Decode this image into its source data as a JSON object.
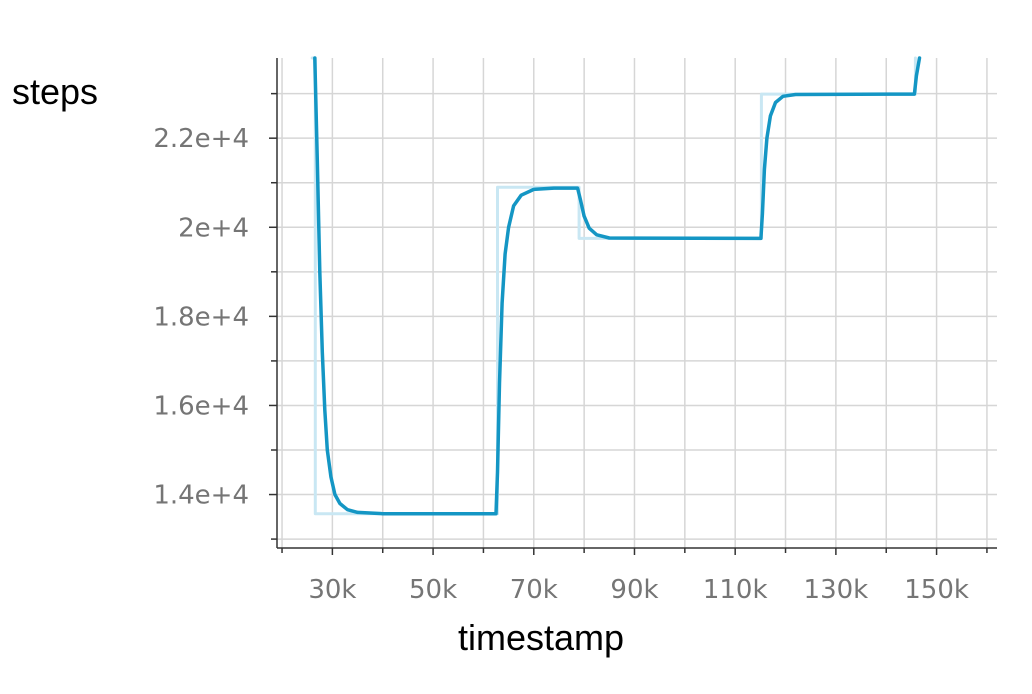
{
  "chart_data": {
    "type": "line",
    "title": "",
    "xlabel": "timestamp",
    "ylabel": "steps",
    "xlim": [
      19000,
      162000
    ],
    "ylim": [
      12800,
      23800
    ],
    "grid": true,
    "x_minor_ticks": [
      20000,
      30000,
      40000,
      50000,
      60000,
      70000,
      80000,
      90000,
      100000,
      110000,
      120000,
      130000,
      140000,
      150000,
      160000
    ],
    "y_minor_ticks": [
      13000,
      14000,
      15000,
      16000,
      17000,
      18000,
      19000,
      20000,
      21000,
      22000,
      23000
    ],
    "x_ticks": [
      {
        "value": 30000,
        "label": "30k"
      },
      {
        "value": 50000,
        "label": "50k"
      },
      {
        "value": 70000,
        "label": "70k"
      },
      {
        "value": 90000,
        "label": "90k"
      },
      {
        "value": 110000,
        "label": "110k"
      },
      {
        "value": 130000,
        "label": "130k"
      },
      {
        "value": 150000,
        "label": "150k"
      }
    ],
    "y_ticks": [
      {
        "value": 14000,
        "label": "1.4e+4"
      },
      {
        "value": 16000,
        "label": "1.6e+4"
      },
      {
        "value": 18000,
        "label": "1.8e+4"
      },
      {
        "value": 20000,
        "label": "2e+4"
      },
      {
        "value": 22000,
        "label": "2.2e+4"
      }
    ],
    "series": [
      {
        "role": "raw",
        "color": "#c9e7f3",
        "points": [
          [
            26000,
            24000
          ],
          [
            26600,
            24000
          ],
          [
            26600,
            13570
          ],
          [
            62800,
            13570
          ],
          [
            62800,
            20900
          ],
          [
            79000,
            20900
          ],
          [
            79000,
            19750
          ],
          [
            115200,
            19750
          ],
          [
            115200,
            22990
          ],
          [
            145800,
            22990
          ],
          [
            145800,
            24000
          ]
        ]
      },
      {
        "role": "smoothed",
        "color": "#1496c4",
        "points": [
          [
            26500,
            24000
          ],
          [
            27000,
            21500
          ],
          [
            27500,
            19000
          ],
          [
            28000,
            17200
          ],
          [
            28500,
            15900
          ],
          [
            29000,
            15000
          ],
          [
            29700,
            14400
          ],
          [
            30500,
            14000
          ],
          [
            31500,
            13800
          ],
          [
            33000,
            13660
          ],
          [
            35000,
            13600
          ],
          [
            40000,
            13570
          ],
          [
            62500,
            13570
          ],
          [
            62800,
            14500
          ],
          [
            63200,
            16500
          ],
          [
            63700,
            18300
          ],
          [
            64300,
            19400
          ],
          [
            65000,
            20000
          ],
          [
            66000,
            20480
          ],
          [
            67500,
            20720
          ],
          [
            70000,
            20850
          ],
          [
            74000,
            20880
          ],
          [
            78700,
            20880
          ],
          [
            79300,
            20600
          ],
          [
            80000,
            20250
          ],
          [
            81000,
            19980
          ],
          [
            82500,
            19830
          ],
          [
            85000,
            19760
          ],
          [
            115100,
            19750
          ],
          [
            115400,
            20300
          ],
          [
            115800,
            21300
          ],
          [
            116300,
            22000
          ],
          [
            117000,
            22500
          ],
          [
            118000,
            22800
          ],
          [
            119500,
            22940
          ],
          [
            122000,
            22980
          ],
          [
            145600,
            22990
          ],
          [
            146000,
            23400
          ],
          [
            146600,
            24000
          ]
        ]
      }
    ]
  }
}
